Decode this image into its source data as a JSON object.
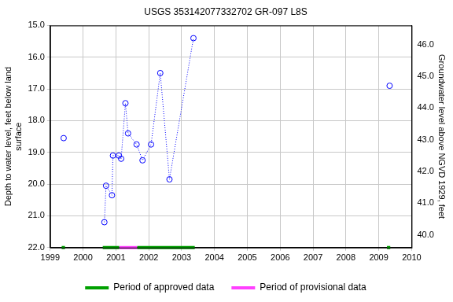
{
  "chart_data": {
    "type": "line",
    "title": "USGS 353142077332702 GR-097 L8S",
    "x": [
      1999.41,
      null,
      2000.65,
      2000.7,
      2000.88,
      2000.91,
      2001.09,
      2001.16,
      2001.29,
      2001.37,
      2001.63,
      2001.81,
      2002.07,
      2002.35,
      2002.63,
      2003.36,
      null,
      2009.33
    ],
    "series": [
      {
        "color": "#0000ff",
        "marker": "circle",
        "line_style": "dotted",
        "values": [
          18.55,
          null,
          21.2,
          20.05,
          20.35,
          19.1,
          19.1,
          19.2,
          17.45,
          18.4,
          18.75,
          19.25,
          18.75,
          16.5,
          19.85,
          15.4,
          null,
          16.9
        ]
      }
    ],
    "xlim": [
      1999,
      2010
    ],
    "xticks": [
      1999,
      2000,
      2001,
      2002,
      2003,
      2004,
      2005,
      2006,
      2007,
      2008,
      2009,
      2010
    ],
    "ylabel": [
      "Depth to water level, feet below land",
      "surface"
    ],
    "ylim": [
      22,
      15
    ],
    "yticks": [
      {
        "value": 15,
        "label": "15.0"
      },
      {
        "value": 16,
        "label": "16.0"
      },
      {
        "value": 17,
        "label": "17.0"
      },
      {
        "value": 18,
        "label": "18.0"
      },
      {
        "value": 19,
        "label": "19.0"
      },
      {
        "value": 20,
        "label": "20.0"
      },
      {
        "value": 21,
        "label": "21.0"
      },
      {
        "value": 22,
        "label": "22.0"
      }
    ],
    "y2label": "Groundwater level above NGVD 1929, feet",
    "y2lim": [
      39.6,
      46.6
    ],
    "y2ticks": [
      {
        "value": 40,
        "label": "40.0"
      },
      {
        "value": 41,
        "label": "41.0"
      },
      {
        "value": 42,
        "label": "42.0"
      },
      {
        "value": 43,
        "label": "43.0"
      },
      {
        "value": 44,
        "label": "44.0"
      },
      {
        "value": 45,
        "label": "45.0"
      },
      {
        "value": 46,
        "label": "46.0"
      }
    ],
    "periods": [
      {
        "name": "Period of approved data",
        "color": "#00a000",
        "ranges": [
          [
            1999.35,
            1999.45
          ],
          [
            2000.6,
            2001.1
          ],
          [
            2001.65,
            2003.4
          ],
          [
            2009.25,
            2009.35
          ]
        ]
      },
      {
        "name": "Period of provisional data",
        "color": "#ff40ff",
        "ranges": [
          [
            2001.1,
            2001.65
          ]
        ]
      }
    ],
    "grid": true,
    "legend": "bottom"
  }
}
